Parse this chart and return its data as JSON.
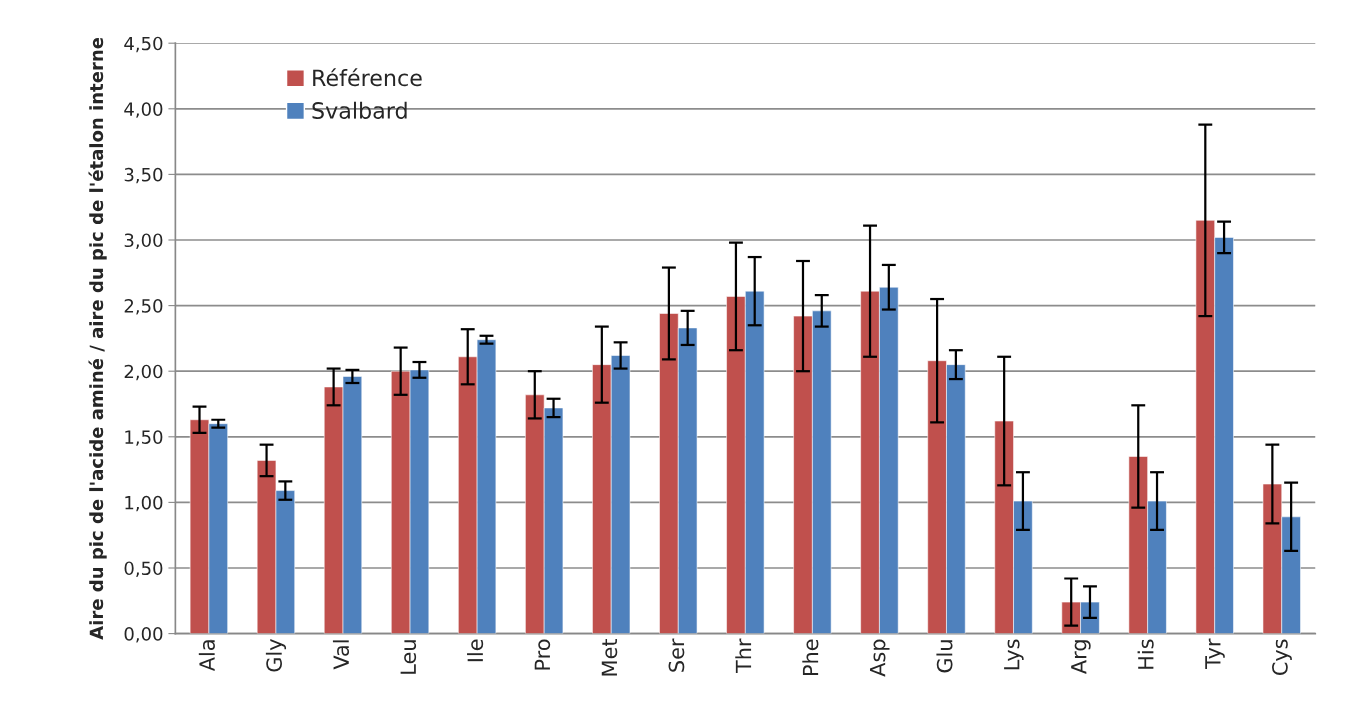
{
  "chart_data": {
    "type": "bar",
    "ylabel": "Aire du pic de l'acide aminé / aire du pic de l'étalon interne",
    "categories": [
      "Ala",
      "Gly",
      "Val",
      "Leu",
      "Ile",
      "Pro",
      "Met",
      "Ser",
      "Thr",
      "Phe",
      "Asp",
      "Glu",
      "Lys",
      "Arg",
      "His",
      "Tyr",
      "Cys"
    ],
    "series": [
      {
        "name": "Référence",
        "color": "#c0504d",
        "values": [
          1.63,
          1.32,
          1.88,
          2.0,
          2.11,
          1.82,
          2.05,
          2.44,
          2.57,
          2.42,
          2.61,
          2.08,
          1.62,
          0.24,
          1.35,
          3.15,
          1.14
        ],
        "errors": [
          0.1,
          0.12,
          0.14,
          0.18,
          0.21,
          0.18,
          0.29,
          0.35,
          0.41,
          0.42,
          0.5,
          0.47,
          0.49,
          0.18,
          0.39,
          0.73,
          0.3
        ]
      },
      {
        "name": "Svalbard",
        "color": "#4f81bd",
        "values": [
          1.6,
          1.09,
          1.96,
          2.01,
          2.24,
          1.72,
          2.12,
          2.33,
          2.61,
          2.46,
          2.64,
          2.05,
          1.01,
          0.24,
          1.01,
          3.02,
          0.89
        ],
        "errors": [
          0.03,
          0.07,
          0.05,
          0.06,
          0.03,
          0.07,
          0.1,
          0.13,
          0.26,
          0.12,
          0.17,
          0.11,
          0.22,
          0.12,
          0.22,
          0.12,
          0.26
        ]
      }
    ],
    "ylim": [
      0,
      4.5
    ],
    "yticks": [
      {
        "value": 0,
        "label": "0,00"
      },
      {
        "value": 0.5,
        "label": "0,50"
      },
      {
        "value": 1,
        "label": "1,00"
      },
      {
        "value": 1.5,
        "label": "1,50"
      },
      {
        "value": 2,
        "label": "2,00"
      },
      {
        "value": 2.5,
        "label": "2,50"
      },
      {
        "value": 3,
        "label": "3,00"
      },
      {
        "value": 3.5,
        "label": "3,50"
      },
      {
        "value": 4,
        "label": "4,00"
      },
      {
        "value": 4.5,
        "label": "4,50"
      }
    ],
    "grid": "y",
    "legend": "top left"
  }
}
